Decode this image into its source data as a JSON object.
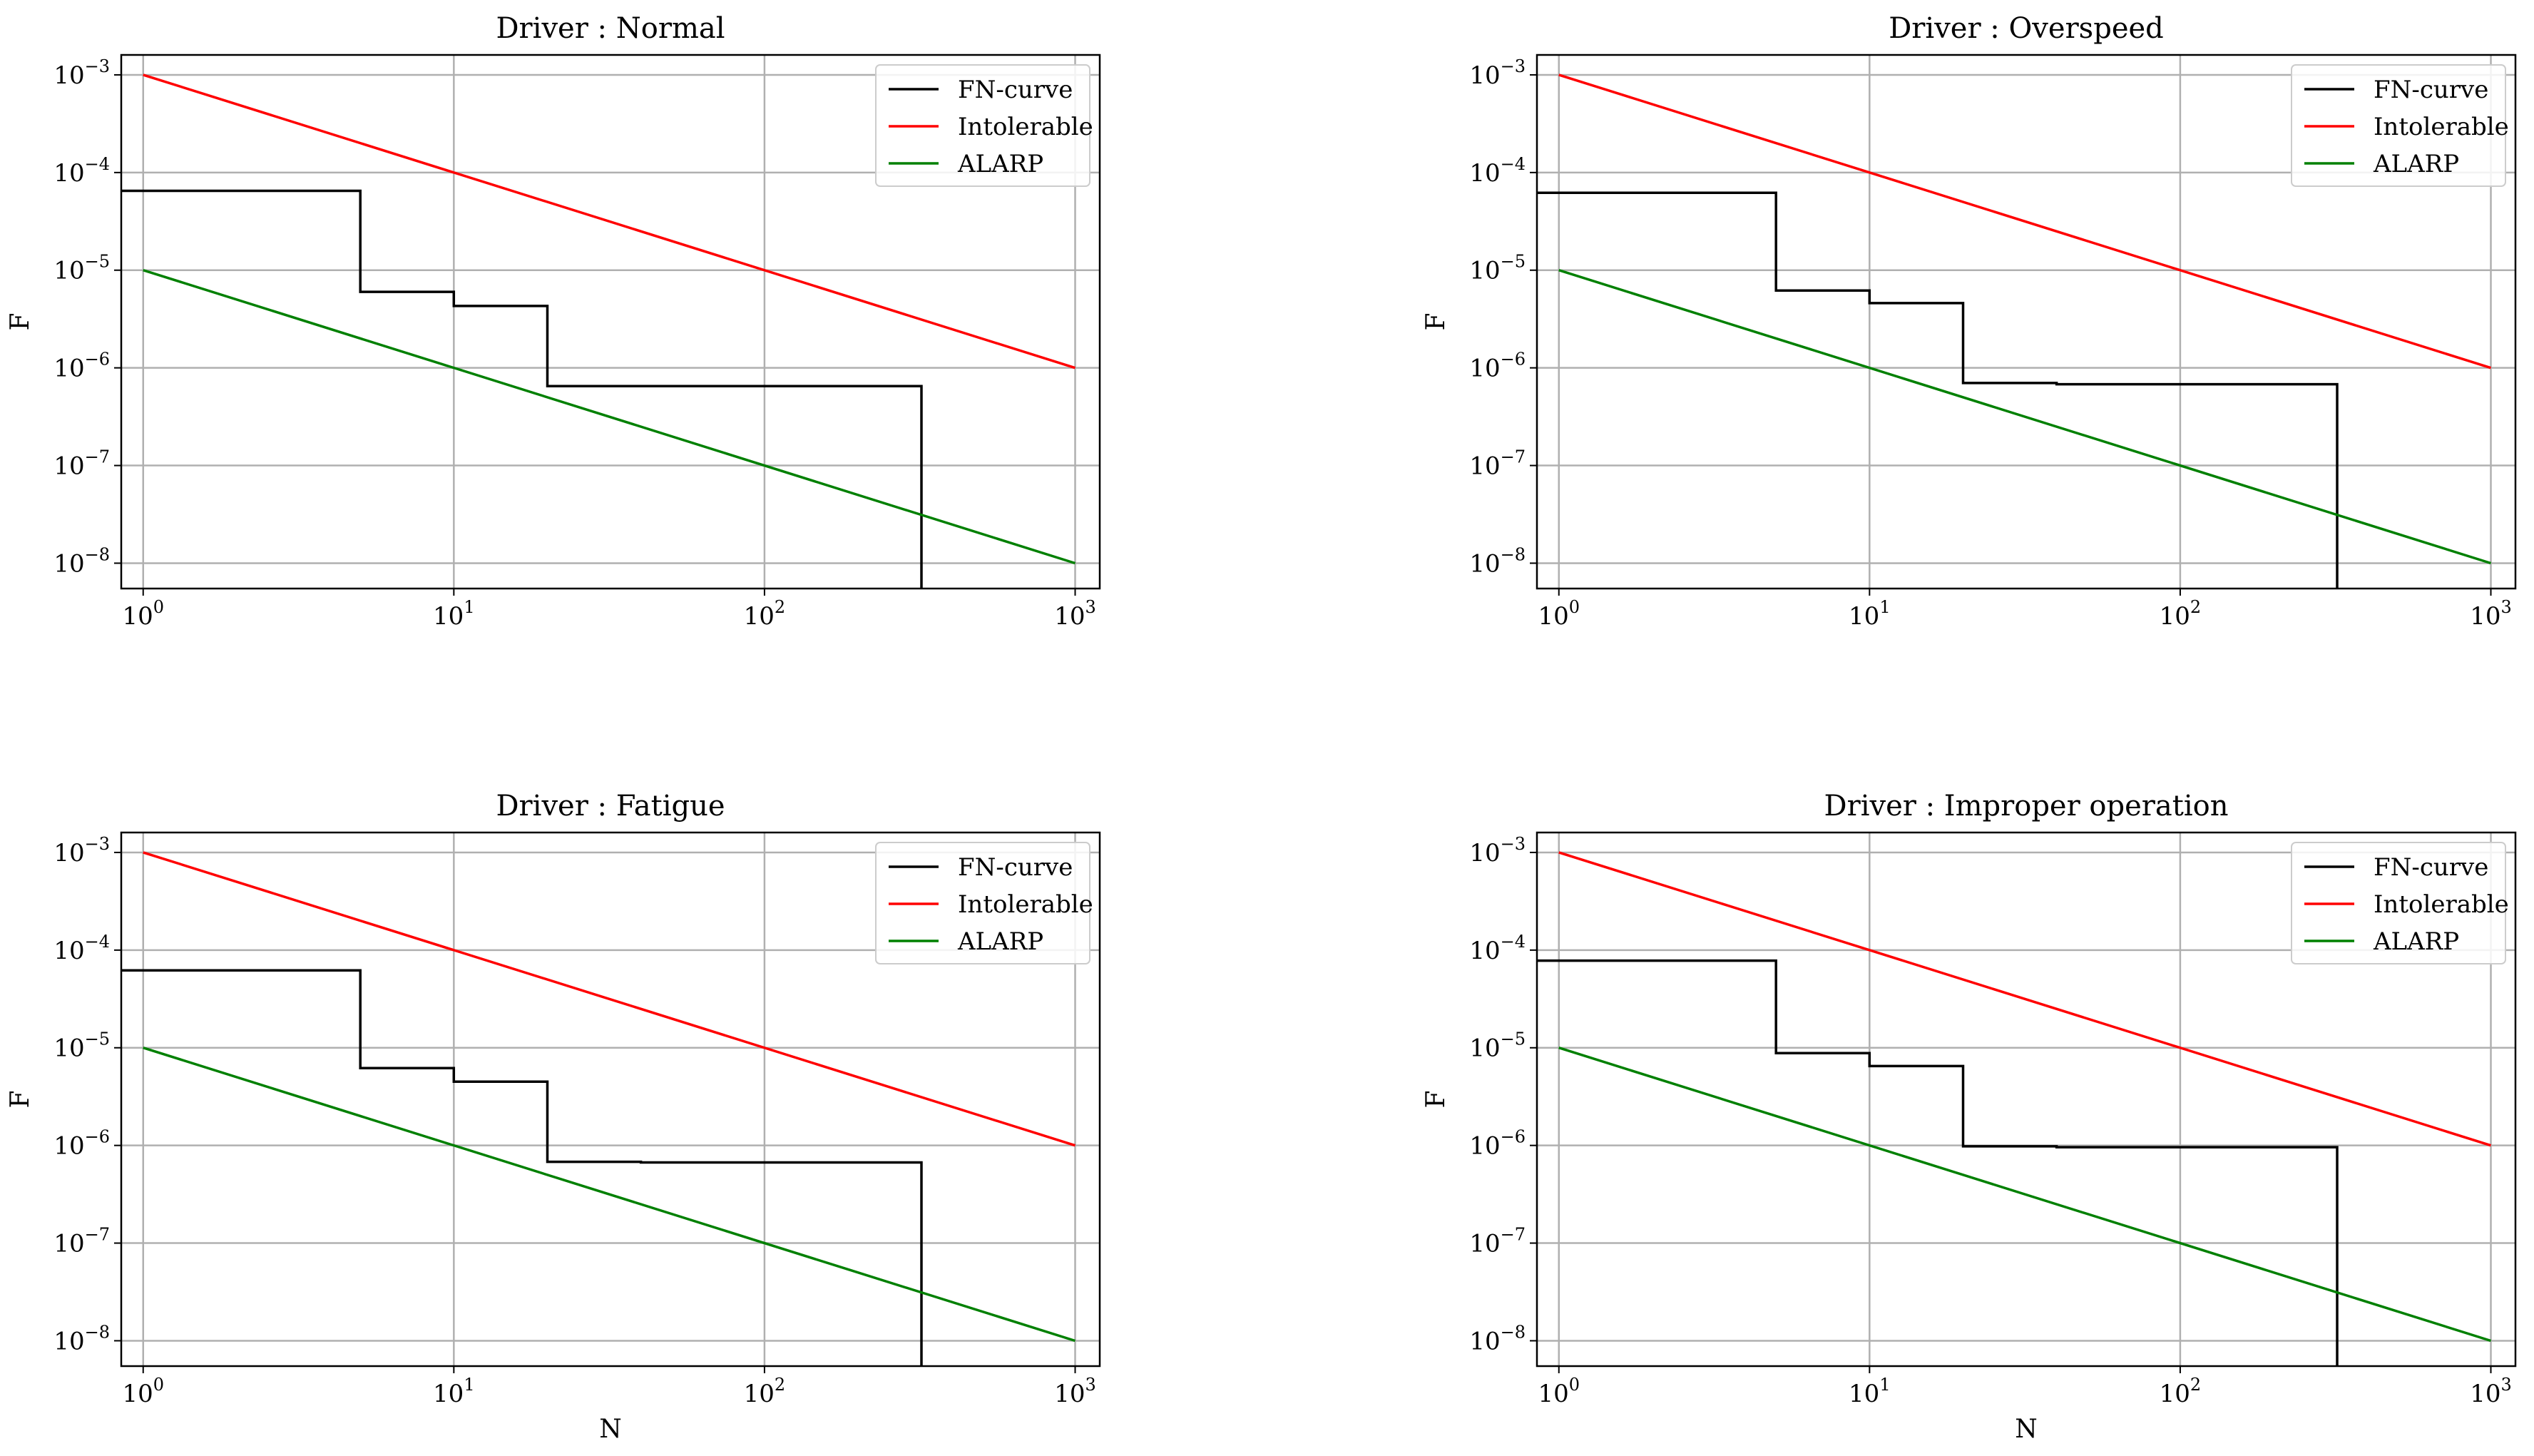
{
  "figure": {
    "colors": {
      "fn_curve": "#000000",
      "intolerable": "#ff0000",
      "alarp": "#008000",
      "grid": "#b0b0b0"
    }
  },
  "chart_data": [
    {
      "type": "line",
      "title": "Driver : Normal",
      "xlabel": "",
      "ylabel": "F",
      "xscale": "log",
      "yscale": "log",
      "xlim": [
        0.85,
        1200
      ],
      "ylim": [
        5.5e-09,
        0.0016
      ],
      "xticks": [
        1,
        10,
        100,
        1000
      ],
      "xtick_labels": [
        {
          "base": "10",
          "exp": "0"
        },
        {
          "base": "10",
          "exp": "1"
        },
        {
          "base": "10",
          "exp": "2"
        },
        {
          "base": "10",
          "exp": "3"
        }
      ],
      "yticks": [
        1e-08,
        1e-07,
        1e-06,
        1e-05,
        0.0001,
        0.001
      ],
      "ytick_labels": [
        {
          "base": "10",
          "exp": "−8"
        },
        {
          "base": "10",
          "exp": "−7"
        },
        {
          "base": "10",
          "exp": "−6"
        },
        {
          "base": "10",
          "exp": "−5"
        },
        {
          "base": "10",
          "exp": "−4"
        },
        {
          "base": "10",
          "exp": "−3"
        }
      ],
      "grid": true,
      "legend": {
        "position": "top-right",
        "entries": [
          "FN-curve",
          "Intolerable",
          "ALARP"
        ]
      },
      "series": [
        {
          "name": "FN-curve",
          "kind": "step",
          "x": [
            0.85,
            5,
            5,
            10,
            10,
            20,
            20,
            320,
            320
          ],
          "y": [
            6.5e-05,
            6.5e-05,
            6e-06,
            6e-06,
            4.3e-06,
            4.3e-06,
            6.5e-07,
            6.5e-07,
            5.5e-09
          ]
        },
        {
          "name": "Intolerable",
          "x": [
            1,
            1000
          ],
          "y": [
            0.001,
            1e-06
          ]
        },
        {
          "name": "ALARP",
          "x": [
            1,
            1000
          ],
          "y": [
            1e-05,
            1e-08
          ]
        }
      ]
    },
    {
      "type": "line",
      "title": "Driver : Overspeed",
      "xlabel": "",
      "ylabel": "F",
      "xscale": "log",
      "yscale": "log",
      "xlim": [
        0.85,
        1200
      ],
      "ylim": [
        5.5e-09,
        0.0016
      ],
      "xticks": [
        1,
        10,
        100,
        1000
      ],
      "xtick_labels": [
        {
          "base": "10",
          "exp": "0"
        },
        {
          "base": "10",
          "exp": "1"
        },
        {
          "base": "10",
          "exp": "2"
        },
        {
          "base": "10",
          "exp": "3"
        }
      ],
      "yticks": [
        1e-08,
        1e-07,
        1e-06,
        1e-05,
        0.0001,
        0.001
      ],
      "ytick_labels": [
        {
          "base": "10",
          "exp": "−8"
        },
        {
          "base": "10",
          "exp": "−7"
        },
        {
          "base": "10",
          "exp": "−6"
        },
        {
          "base": "10",
          "exp": "−5"
        },
        {
          "base": "10",
          "exp": "−4"
        },
        {
          "base": "10",
          "exp": "−3"
        }
      ],
      "grid": true,
      "legend": {
        "position": "top-right",
        "entries": [
          "FN-curve",
          "Intolerable",
          "ALARP"
        ]
      },
      "series": [
        {
          "name": "FN-curve",
          "kind": "step",
          "x": [
            0.85,
            5,
            5,
            10,
            10,
            20,
            20,
            40,
            40,
            320,
            320
          ],
          "y": [
            6.2e-05,
            6.2e-05,
            6.2e-06,
            6.2e-06,
            4.6e-06,
            4.6e-06,
            7e-07,
            7e-07,
            6.8e-07,
            6.8e-07,
            5.5e-09
          ]
        },
        {
          "name": "Intolerable",
          "x": [
            1,
            1000
          ],
          "y": [
            0.001,
            1e-06
          ]
        },
        {
          "name": "ALARP",
          "x": [
            1,
            1000
          ],
          "y": [
            1e-05,
            1e-08
          ]
        }
      ]
    },
    {
      "type": "line",
      "title": "Driver : Fatigue",
      "xlabel": "N",
      "ylabel": "F",
      "xscale": "log",
      "yscale": "log",
      "xlim": [
        0.85,
        1200
      ],
      "ylim": [
        5.5e-09,
        0.0016
      ],
      "xticks": [
        1,
        10,
        100,
        1000
      ],
      "xtick_labels": [
        {
          "base": "10",
          "exp": "0"
        },
        {
          "base": "10",
          "exp": "1"
        },
        {
          "base": "10",
          "exp": "2"
        },
        {
          "base": "10",
          "exp": "3"
        }
      ],
      "yticks": [
        1e-08,
        1e-07,
        1e-06,
        1e-05,
        0.0001,
        0.001
      ],
      "ytick_labels": [
        {
          "base": "10",
          "exp": "−8"
        },
        {
          "base": "10",
          "exp": "−7"
        },
        {
          "base": "10",
          "exp": "−6"
        },
        {
          "base": "10",
          "exp": "−5"
        },
        {
          "base": "10",
          "exp": "−4"
        },
        {
          "base": "10",
          "exp": "−3"
        }
      ],
      "grid": true,
      "legend": {
        "position": "top-right",
        "entries": [
          "FN-curve",
          "Intolerable",
          "ALARP"
        ]
      },
      "series": [
        {
          "name": "FN-curve",
          "kind": "step",
          "x": [
            0.85,
            5,
            5,
            10,
            10,
            20,
            20,
            40,
            40,
            320,
            320
          ],
          "y": [
            6.2e-05,
            6.2e-05,
            6.2e-06,
            6.2e-06,
            4.5e-06,
            4.5e-06,
            6.8e-07,
            6.8e-07,
            6.7e-07,
            6.7e-07,
            5.5e-09
          ]
        },
        {
          "name": "Intolerable",
          "x": [
            1,
            1000
          ],
          "y": [
            0.001,
            1e-06
          ]
        },
        {
          "name": "ALARP",
          "x": [
            1,
            1000
          ],
          "y": [
            1e-05,
            1e-08
          ]
        }
      ]
    },
    {
      "type": "line",
      "title": "Driver : Improper operation",
      "xlabel": "N",
      "ylabel": "F",
      "xscale": "log",
      "yscale": "log",
      "xlim": [
        0.85,
        1200
      ],
      "ylim": [
        5.5e-09,
        0.0016
      ],
      "xticks": [
        1,
        10,
        100,
        1000
      ],
      "xtick_labels": [
        {
          "base": "10",
          "exp": "0"
        },
        {
          "base": "10",
          "exp": "1"
        },
        {
          "base": "10",
          "exp": "2"
        },
        {
          "base": "10",
          "exp": "3"
        }
      ],
      "yticks": [
        1e-08,
        1e-07,
        1e-06,
        1e-05,
        0.0001,
        0.001
      ],
      "ytick_labels": [
        {
          "base": "10",
          "exp": "−8"
        },
        {
          "base": "10",
          "exp": "−7"
        },
        {
          "base": "10",
          "exp": "−6"
        },
        {
          "base": "10",
          "exp": "−5"
        },
        {
          "base": "10",
          "exp": "−4"
        },
        {
          "base": "10",
          "exp": "−3"
        }
      ],
      "grid": true,
      "legend": {
        "position": "top-right",
        "entries": [
          "FN-curve",
          "Intolerable",
          "ALARP"
        ]
      },
      "series": [
        {
          "name": "FN-curve",
          "kind": "step",
          "x": [
            0.85,
            5,
            5,
            10,
            10,
            20,
            20,
            40,
            40,
            320,
            320
          ],
          "y": [
            7.8e-05,
            7.8e-05,
            8.8e-06,
            8.8e-06,
            6.5e-06,
            6.5e-06,
            9.8e-07,
            9.8e-07,
            9.6e-07,
            9.6e-07,
            5.5e-09
          ]
        },
        {
          "name": "Intolerable",
          "x": [
            1,
            1000
          ],
          "y": [
            0.001,
            1e-06
          ]
        },
        {
          "name": "ALARP",
          "x": [
            1,
            1000
          ],
          "y": [
            1e-05,
            1e-08
          ]
        }
      ]
    }
  ]
}
